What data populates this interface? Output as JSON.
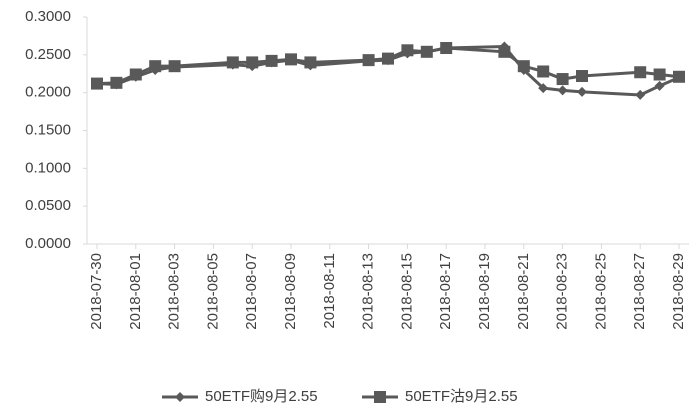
{
  "chart_data": {
    "type": "line",
    "x": [
      "2018-07-30",
      "2018-07-31",
      "2018-08-01",
      "2018-08-02",
      "2018-08-03",
      "2018-08-06",
      "2018-08-07",
      "2018-08-08",
      "2018-08-09",
      "2018-08-10",
      "2018-08-13",
      "2018-08-14",
      "2018-08-15",
      "2018-08-16",
      "2018-08-17",
      "2018-08-20",
      "2018-08-21",
      "2018-08-22",
      "2018-08-23",
      "2018-08-24",
      "2018-08-27",
      "2018-08-28",
      "2018-08-29"
    ],
    "series": [
      {
        "name": "50ETF购9月2.55",
        "color": "#595959",
        "marker": "diamond",
        "values": [
          0.212,
          0.211,
          0.221,
          0.23,
          0.234,
          0.237,
          0.235,
          0.24,
          0.243,
          0.236,
          0.242,
          0.243,
          0.252,
          0.254,
          0.259,
          0.261,
          0.23,
          0.206,
          0.203,
          0.201,
          0.197,
          0.209,
          0.22
        ]
      },
      {
        "name": "50ETF沽9月2.55",
        "color": "#595959",
        "marker": "square",
        "values": [
          0.212,
          0.213,
          0.224,
          0.235,
          0.235,
          0.24,
          0.24,
          0.242,
          0.244,
          0.24,
          0.243,
          0.245,
          0.256,
          0.254,
          0.259,
          0.254,
          0.235,
          0.228,
          0.218,
          0.222,
          0.227,
          0.224,
          0.221
        ]
      }
    ],
    "xlim": [
      "2018-07-30",
      "2018-08-29"
    ],
    "xticks": [
      "2018-07-30",
      "2018-08-01",
      "2018-08-03",
      "2018-08-05",
      "2018-08-07",
      "2018-08-09",
      "2018-08-11",
      "2018-08-13",
      "2018-08-15",
      "2018-08-17",
      "2018-08-19",
      "2018-08-21",
      "2018-08-23",
      "2018-08-25",
      "2018-08-27",
      "2018-08-29"
    ],
    "ylim": [
      0,
      0.3
    ],
    "yticks": [
      {
        "value": 0,
        "label": "0.0000"
      },
      {
        "value": 0.05,
        "label": "0.0500"
      },
      {
        "value": 0.1,
        "label": "0.1000"
      },
      {
        "value": 0.15,
        "label": "0.1500"
      },
      {
        "value": 0.2,
        "label": "0.2000"
      },
      {
        "value": 0.25,
        "label": "0.2500"
      },
      {
        "value": 0.3,
        "label": "0.3000"
      }
    ],
    "legend": "bottom"
  }
}
